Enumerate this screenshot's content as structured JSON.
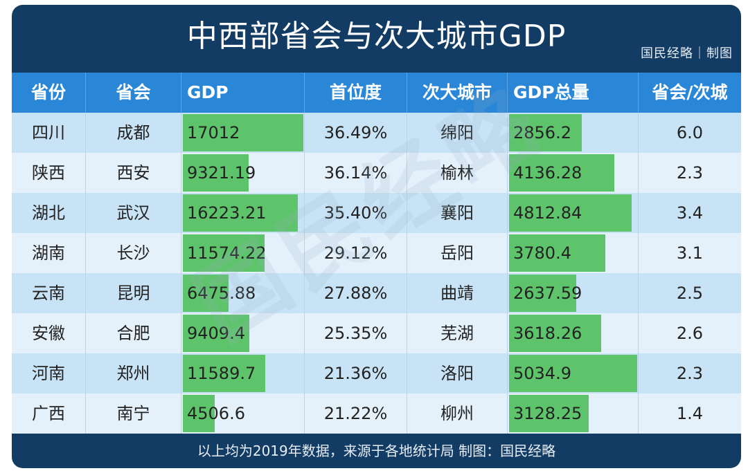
{
  "chart_data": {
    "type": "table",
    "title": "中西部省会与次大城市GDP",
    "brand": "国民经略｜制图",
    "columns": [
      "省份",
      "省会",
      "GDP",
      "首位度",
      "次大城市",
      "GDP总量",
      "省会/次城"
    ],
    "rows": [
      {
        "province": "四川",
        "capital": "成都",
        "gdp": "17012",
        "gdp_value": 17012,
        "primacy": "36.49%",
        "second_city": "绵阳",
        "second_gdp": "2856.2",
        "second_gdp_value": 2856.2,
        "ratio": "6.0"
      },
      {
        "province": "陕西",
        "capital": "西安",
        "gdp": "9321.19",
        "gdp_value": 9321.19,
        "primacy": "36.14%",
        "second_city": "榆林",
        "second_gdp": "4136.28",
        "second_gdp_value": 4136.28,
        "ratio": "2.3"
      },
      {
        "province": "湖北",
        "capital": "武汉",
        "gdp": "16223.21",
        "gdp_value": 16223.21,
        "primacy": "35.40%",
        "second_city": "襄阳",
        "second_gdp": "4812.84",
        "second_gdp_value": 4812.84,
        "ratio": "3.4"
      },
      {
        "province": "湖南",
        "capital": "长沙",
        "gdp": "11574.22",
        "gdp_value": 11574.22,
        "primacy": "29.12%",
        "second_city": "岳阳",
        "second_gdp": "3780.4",
        "second_gdp_value": 3780.4,
        "ratio": "3.1"
      },
      {
        "province": "云南",
        "capital": "昆明",
        "gdp": "6475.88",
        "gdp_value": 6475.88,
        "primacy": "27.88%",
        "second_city": "曲靖",
        "second_gdp": "2637.59",
        "second_gdp_value": 2637.59,
        "ratio": "2.5"
      },
      {
        "province": "安徽",
        "capital": "合肥",
        "gdp": "9409.4",
        "gdp_value": 9409.4,
        "primacy": "25.35%",
        "second_city": "芜湖",
        "second_gdp": "3618.26",
        "second_gdp_value": 3618.26,
        "ratio": "2.6"
      },
      {
        "province": "河南",
        "capital": "郑州",
        "gdp": "11589.7",
        "gdp_value": 11589.7,
        "primacy": "21.36%",
        "second_city": "洛阳",
        "second_gdp": "5034.9",
        "second_gdp_value": 5034.9,
        "ratio": "2.3"
      },
      {
        "province": "广西",
        "capital": "南宁",
        "gdp": "4506.6",
        "gdp_value": 4506.6,
        "primacy": "21.22%",
        "second_city": "柳州",
        "second_gdp": "3128.25",
        "second_gdp_value": 3128.25,
        "ratio": "1.4"
      }
    ],
    "footer": "以上均为2019年数据，来源于各地统计局  制图：国民经略",
    "colors": {
      "bar": "#5ec46b",
      "header": "#2a86d6",
      "frame": "#133c65"
    }
  }
}
